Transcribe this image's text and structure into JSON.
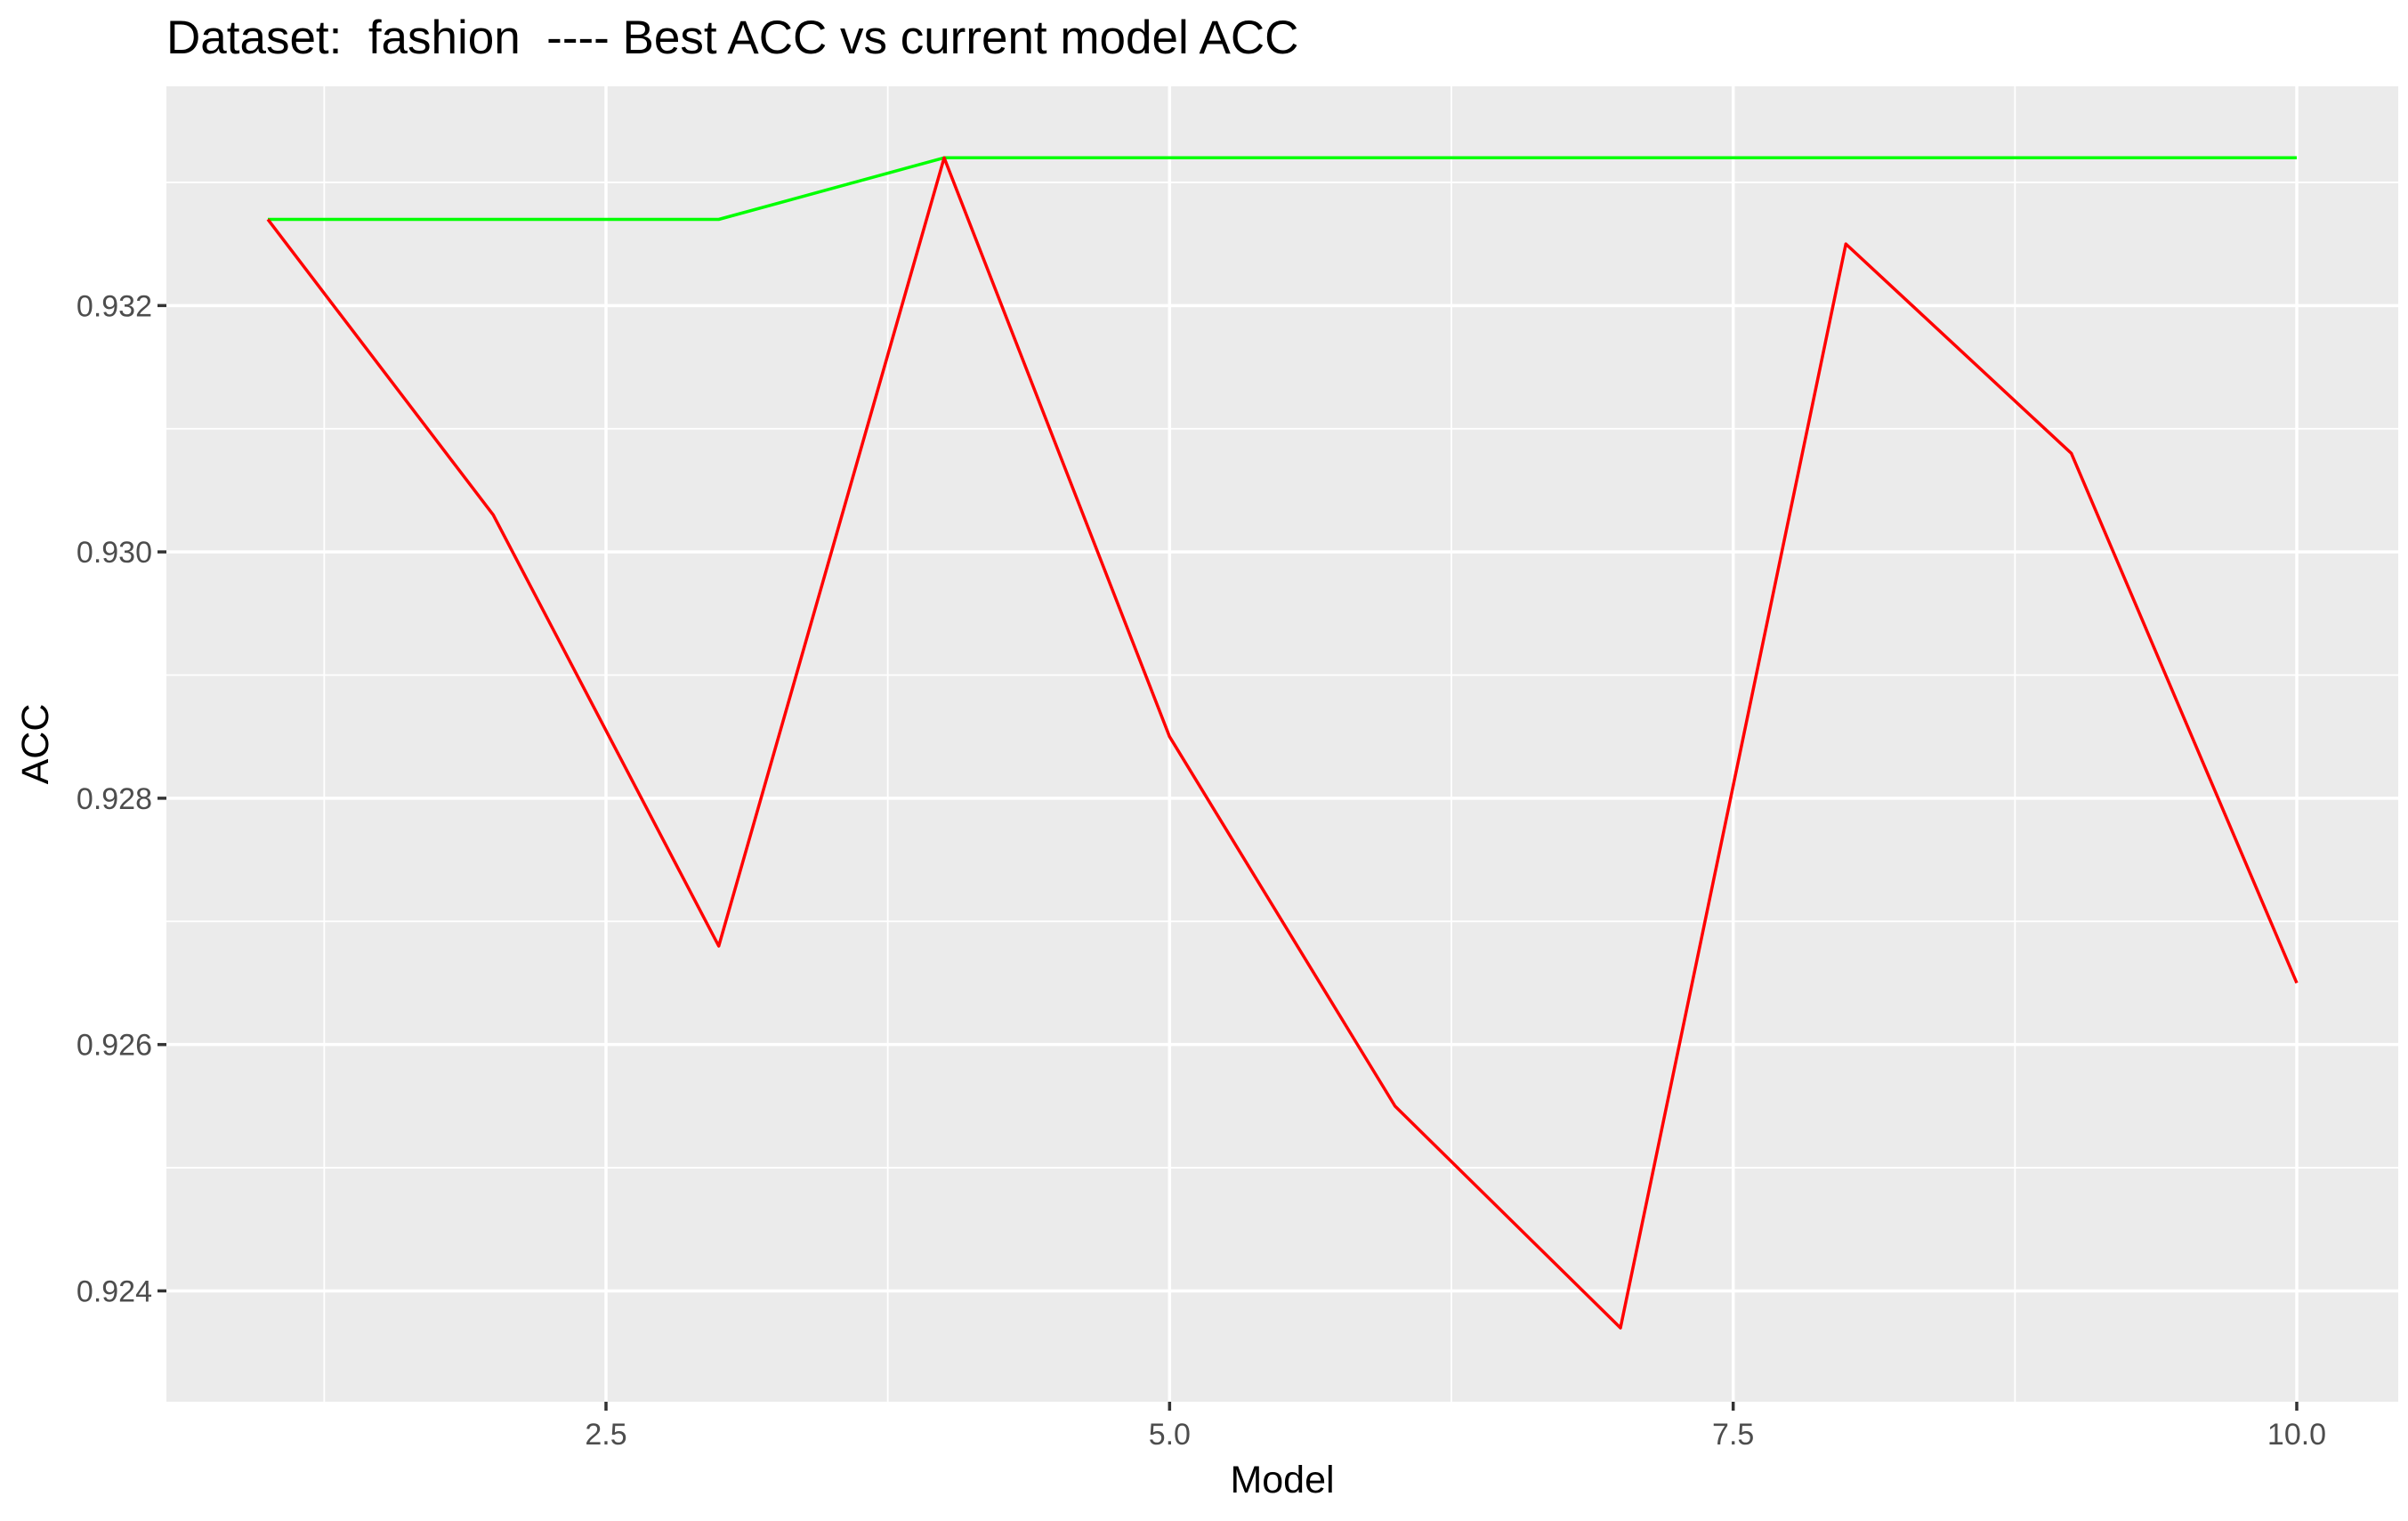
{
  "chart_data": {
    "type": "line",
    "title": "Dataset:  fashion  ---- Best ACC vs current model ACC",
    "xlabel": "Model",
    "ylabel": "ACC",
    "xlim": [
      0.55,
      10.45
    ],
    "ylim": [
      0.9231,
      0.93378
    ],
    "x_ticks": [
      2.5,
      5.0,
      7.5,
      10.0
    ],
    "x_tick_labels": [
      "2.5",
      "5.0",
      "7.5",
      "10.0"
    ],
    "x_minor_ticks": [
      1.25,
      3.75,
      6.25,
      8.75
    ],
    "y_ticks": [
      0.924,
      0.926,
      0.928,
      0.93,
      0.932
    ],
    "y_tick_labels": [
      "0.924",
      "0.926",
      "0.928",
      "0.930",
      "0.932"
    ],
    "y_minor_ticks": [
      0.923,
      0.925,
      0.927,
      0.929,
      0.931,
      0.933
    ],
    "grid": true,
    "legend": "none",
    "x": [
      1,
      2,
      3,
      4,
      5,
      6,
      7,
      8,
      9,
      10
    ],
    "series": [
      {
        "name": "Best ACC",
        "color": "#00ff00",
        "values": [
          0.9327,
          0.9327,
          0.9327,
          0.9332,
          0.9332,
          0.9332,
          0.9332,
          0.9332,
          0.9332,
          0.9332
        ]
      },
      {
        "name": "Current model ACC",
        "color": "#ff0000",
        "values": [
          0.9327,
          0.9303,
          0.9268,
          0.9332,
          0.9285,
          0.9255,
          0.9237,
          0.9325,
          0.9308,
          0.9265
        ]
      }
    ]
  }
}
